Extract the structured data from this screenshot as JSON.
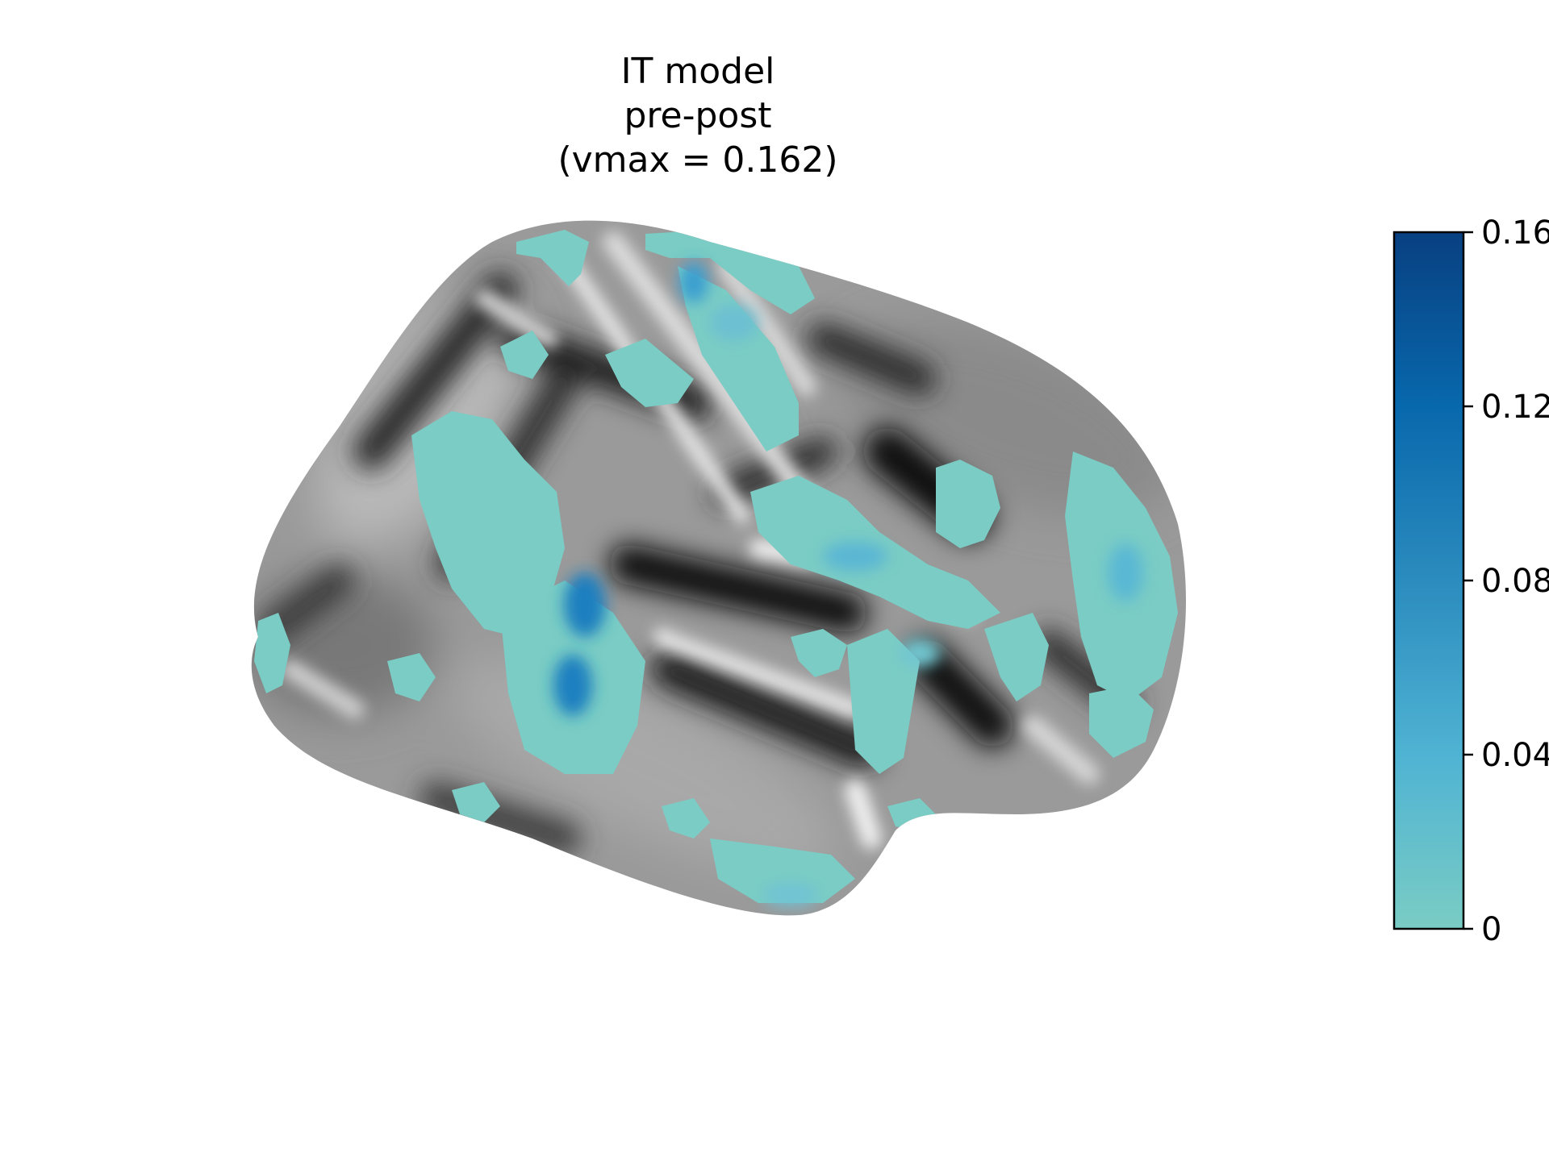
{
  "figure": {
    "title_lines": [
      "IT model",
      "pre-post",
      "(vmax = 0.162)"
    ]
  },
  "brain_map": {
    "view": "lateral inflated cortical surface",
    "background": "grayscale curvature",
    "overlay_colormap": "teal-to-dark-blue"
  },
  "colorbar": {
    "vmin": 0,
    "vmax": 0.162,
    "ticks": [
      {
        "value": 0,
        "label": "0"
      },
      {
        "value": 0.04,
        "label": "0.04"
      },
      {
        "value": 0.08,
        "label": "0.08"
      },
      {
        "value": 0.12,
        "label": "0.12"
      },
      {
        "value": 0.16,
        "label": "0.16"
      }
    ],
    "colors": [
      "#7accc4",
      "#4fb3d3",
      "#2b8cbe",
      "#0868ac",
      "#084081"
    ]
  }
}
